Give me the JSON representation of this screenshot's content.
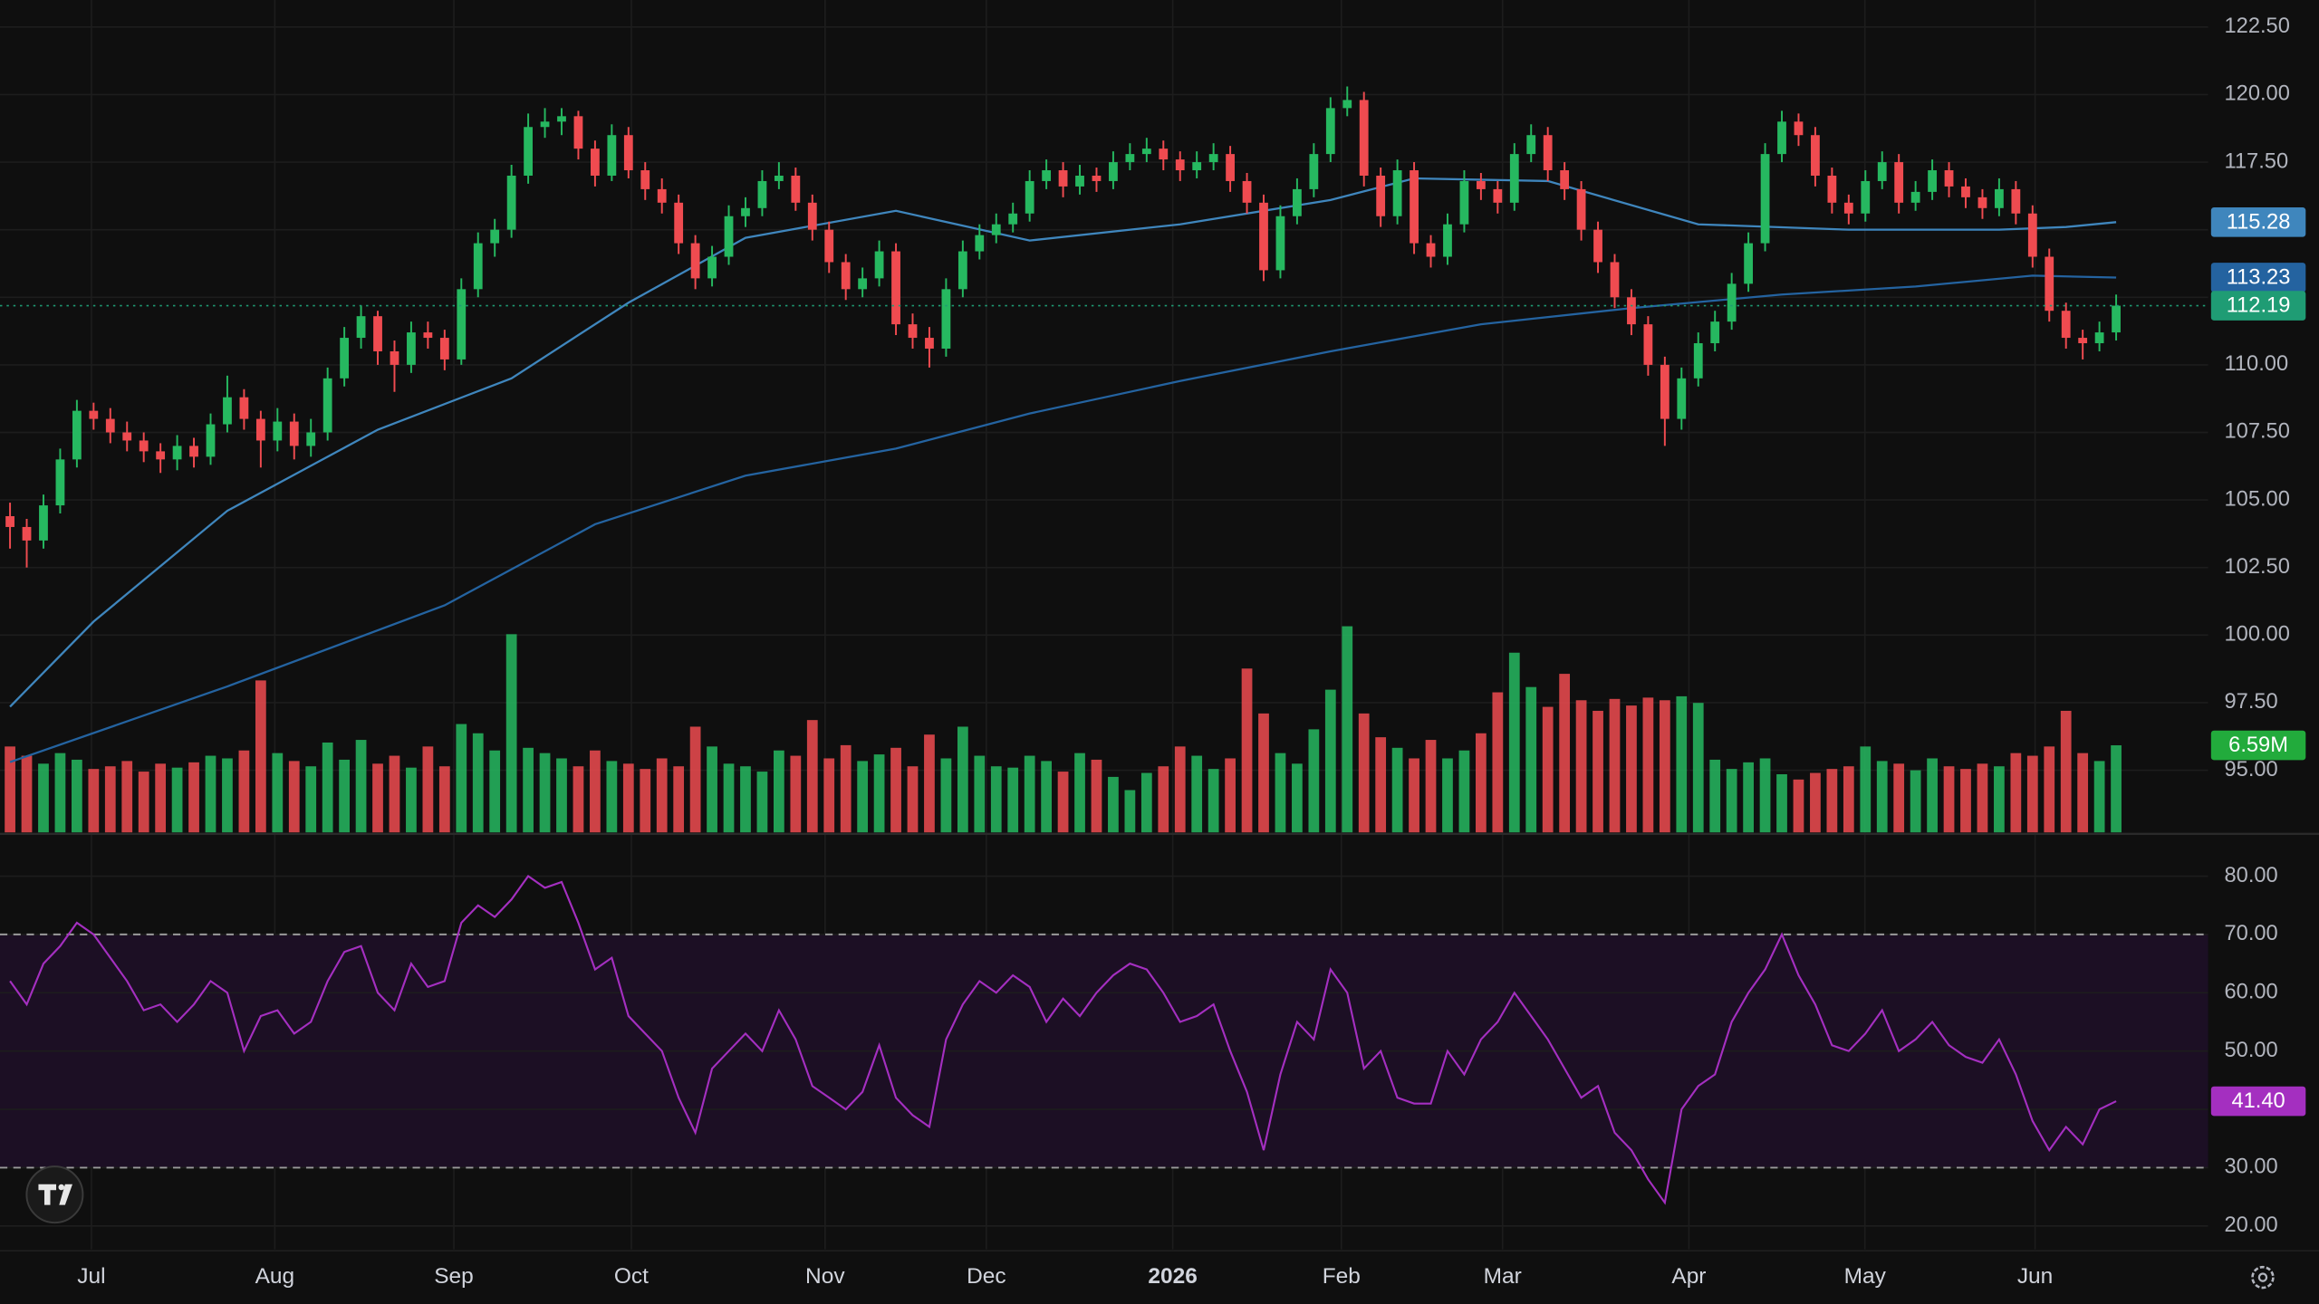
{
  "chart_data": {
    "type": "candlestick",
    "xlim": [
      -0.6,
      131.5
    ],
    "xticks": [
      {
        "value": 4.87,
        "label": "Jul"
      },
      {
        "value": 15.84,
        "label": "Aug"
      },
      {
        "value": 26.55,
        "label": "Sep"
      },
      {
        "value": 37.17,
        "label": "Oct"
      },
      {
        "value": 48.76,
        "label": "Nov"
      },
      {
        "value": 58.41,
        "label": "Dec"
      },
      {
        "value": 69.56,
        "label": "2026"
      },
      {
        "value": 79.65,
        "label": "Feb"
      },
      {
        "value": 89.29,
        "label": "Mar"
      },
      {
        "value": 100.44,
        "label": "Apr"
      },
      {
        "value": 110.97,
        "label": "May"
      },
      {
        "value": 121.15,
        "label": "Jun"
      }
    ],
    "ylim": [
      92.7,
      123.5
    ],
    "yticks": [
      {
        "value": 95,
        "label": "95.00"
      },
      {
        "value": 97.5,
        "label": "97.50"
      },
      {
        "value": 100,
        "label": "100.00"
      },
      {
        "value": 102.5,
        "label": "102.50"
      },
      {
        "value": 105,
        "label": "105.00"
      },
      {
        "value": 107.5,
        "label": "107.50"
      },
      {
        "value": 110,
        "label": "110.00"
      },
      {
        "value": 112.5,
        "label": "112.50"
      },
      {
        "value": 115,
        "label": "115.00"
      },
      {
        "value": 117.5,
        "label": "117.50"
      },
      {
        "value": 120,
        "label": "120.00"
      },
      {
        "value": 122.5,
        "label": "122.50"
      }
    ],
    "grid": true,
    "up_color": "#26b860",
    "down_color": "#ef4b50",
    "price_line_color": "#1f9c74",
    "candles": [
      [
        104.4,
        104.9,
        103.2,
        104.0
      ],
      [
        104.0,
        104.3,
        102.5,
        103.5
      ],
      [
        103.5,
        105.2,
        103.2,
        104.8
      ],
      [
        104.8,
        106.9,
        104.5,
        106.5
      ],
      [
        106.5,
        108.7,
        106.2,
        108.3
      ],
      [
        108.3,
        108.6,
        107.6,
        108.0
      ],
      [
        108.0,
        108.4,
        107.1,
        107.5
      ],
      [
        107.5,
        107.9,
        106.8,
        107.2
      ],
      [
        107.2,
        107.5,
        106.4,
        106.8
      ],
      [
        106.8,
        107.1,
        106.0,
        106.5
      ],
      [
        106.5,
        107.4,
        106.1,
        107.0
      ],
      [
        107.0,
        107.3,
        106.2,
        106.6
      ],
      [
        106.6,
        108.2,
        106.3,
        107.8
      ],
      [
        107.8,
        109.6,
        107.5,
        108.8
      ],
      [
        108.8,
        109.1,
        107.6,
        108.0
      ],
      [
        108.0,
        108.3,
        106.2,
        107.2
      ],
      [
        107.2,
        108.4,
        106.8,
        107.9
      ],
      [
        107.9,
        108.2,
        106.5,
        107.0
      ],
      [
        107.0,
        108.0,
        106.6,
        107.5
      ],
      [
        107.5,
        109.9,
        107.2,
        109.5
      ],
      [
        109.5,
        111.4,
        109.2,
        111.0
      ],
      [
        111.0,
        112.2,
        110.6,
        111.8
      ],
      [
        111.8,
        112.0,
        110.0,
        110.5
      ],
      [
        110.5,
        110.9,
        109.0,
        110.0
      ],
      [
        110.0,
        111.6,
        109.7,
        111.2
      ],
      [
        111.2,
        111.6,
        110.6,
        111.0
      ],
      [
        111.0,
        111.3,
        109.8,
        110.2
      ],
      [
        110.2,
        113.2,
        110.0,
        112.8
      ],
      [
        112.8,
        114.9,
        112.5,
        114.5
      ],
      [
        114.5,
        115.4,
        114.0,
        115.0
      ],
      [
        115.0,
        117.4,
        114.7,
        117.0
      ],
      [
        117.0,
        119.3,
        116.7,
        118.8
      ],
      [
        118.8,
        119.5,
        118.4,
        119.0
      ],
      [
        119.0,
        119.5,
        118.5,
        119.2
      ],
      [
        119.2,
        119.4,
        117.6,
        118.0
      ],
      [
        118.0,
        118.3,
        116.6,
        117.0
      ],
      [
        117.0,
        118.9,
        116.8,
        118.5
      ],
      [
        118.5,
        118.8,
        116.9,
        117.2
      ],
      [
        117.2,
        117.5,
        116.1,
        116.5
      ],
      [
        116.5,
        116.9,
        115.6,
        116.0
      ],
      [
        116.0,
        116.3,
        114.1,
        114.5
      ],
      [
        114.5,
        114.8,
        112.8,
        113.2
      ],
      [
        113.2,
        114.4,
        112.9,
        114.0
      ],
      [
        114.0,
        115.9,
        113.7,
        115.5
      ],
      [
        115.5,
        116.2,
        115.1,
        115.8
      ],
      [
        115.8,
        117.2,
        115.5,
        116.8
      ],
      [
        116.8,
        117.5,
        116.5,
        117.0
      ],
      [
        117.0,
        117.3,
        115.7,
        116.0
      ],
      [
        116.0,
        116.3,
        114.6,
        115.0
      ],
      [
        115.0,
        115.3,
        113.4,
        113.8
      ],
      [
        113.8,
        114.1,
        112.4,
        112.8
      ],
      [
        112.8,
        113.6,
        112.5,
        113.2
      ],
      [
        113.2,
        114.6,
        112.9,
        114.2
      ],
      [
        114.2,
        114.5,
        111.1,
        111.5
      ],
      [
        111.5,
        111.9,
        110.6,
        111.0
      ],
      [
        111.0,
        111.4,
        109.9,
        110.6
      ],
      [
        110.6,
        113.2,
        110.3,
        112.8
      ],
      [
        112.8,
        114.6,
        112.5,
        114.2
      ],
      [
        114.2,
        115.2,
        113.9,
        114.8
      ],
      [
        114.8,
        115.6,
        114.5,
        115.2
      ],
      [
        115.2,
        116.0,
        114.9,
        115.6
      ],
      [
        115.6,
        117.2,
        115.3,
        116.8
      ],
      [
        116.8,
        117.6,
        116.5,
        117.2
      ],
      [
        117.2,
        117.5,
        116.2,
        116.6
      ],
      [
        116.6,
        117.4,
        116.3,
        117.0
      ],
      [
        117.0,
        117.3,
        116.4,
        116.8
      ],
      [
        116.8,
        117.9,
        116.5,
        117.5
      ],
      [
        117.5,
        118.2,
        117.2,
        117.8
      ],
      [
        117.8,
        118.4,
        117.5,
        118.0
      ],
      [
        118.0,
        118.3,
        117.2,
        117.6
      ],
      [
        117.6,
        117.9,
        116.8,
        117.2
      ],
      [
        117.2,
        117.9,
        116.9,
        117.5
      ],
      [
        117.5,
        118.2,
        117.2,
        117.8
      ],
      [
        117.8,
        118.1,
        116.4,
        116.8
      ],
      [
        116.8,
        117.1,
        115.6,
        116.0
      ],
      [
        116.0,
        116.3,
        113.1,
        113.5
      ],
      [
        113.5,
        115.9,
        113.2,
        115.5
      ],
      [
        115.5,
        116.9,
        115.2,
        116.5
      ],
      [
        116.5,
        118.2,
        116.2,
        117.8
      ],
      [
        117.8,
        119.9,
        117.5,
        119.5
      ],
      [
        119.5,
        120.3,
        119.2,
        119.8
      ],
      [
        119.8,
        120.1,
        116.6,
        117.0
      ],
      [
        117.0,
        117.3,
        115.1,
        115.5
      ],
      [
        115.5,
        117.6,
        115.2,
        117.2
      ],
      [
        117.2,
        117.5,
        114.1,
        114.5
      ],
      [
        114.5,
        114.8,
        113.6,
        114.0
      ],
      [
        114.0,
        115.6,
        113.7,
        115.2
      ],
      [
        115.2,
        117.2,
        114.9,
        116.8
      ],
      [
        116.8,
        117.1,
        116.1,
        116.5
      ],
      [
        116.5,
        116.8,
        115.6,
        116.0
      ],
      [
        116.0,
        118.2,
        115.7,
        117.8
      ],
      [
        117.8,
        118.9,
        117.5,
        118.5
      ],
      [
        118.5,
        118.8,
        116.8,
        117.2
      ],
      [
        117.2,
        117.5,
        116.1,
        116.5
      ],
      [
        116.5,
        116.8,
        114.6,
        115.0
      ],
      [
        115.0,
        115.3,
        113.4,
        113.8
      ],
      [
        113.8,
        114.1,
        112.1,
        112.5
      ],
      [
        112.5,
        112.8,
        111.1,
        111.5
      ],
      [
        111.5,
        111.8,
        109.6,
        110.0
      ],
      [
        110.0,
        110.3,
        107.0,
        108.0
      ],
      [
        108.0,
        109.9,
        107.6,
        109.5
      ],
      [
        109.5,
        111.2,
        109.2,
        110.8
      ],
      [
        110.8,
        112.0,
        110.5,
        111.6
      ],
      [
        111.6,
        113.4,
        111.3,
        113.0
      ],
      [
        113.0,
        114.9,
        112.7,
        114.5
      ],
      [
        114.5,
        118.2,
        114.2,
        117.8
      ],
      [
        117.8,
        119.4,
        117.5,
        119.0
      ],
      [
        119.0,
        119.3,
        118.1,
        118.5
      ],
      [
        118.5,
        118.8,
        116.6,
        117.0
      ],
      [
        117.0,
        117.3,
        115.6,
        116.0
      ],
      [
        116.0,
        116.3,
        115.2,
        115.6
      ],
      [
        115.6,
        117.2,
        115.3,
        116.8
      ],
      [
        116.8,
        117.9,
        116.5,
        117.5
      ],
      [
        117.5,
        117.8,
        115.6,
        116.0
      ],
      [
        116.0,
        116.8,
        115.7,
        116.4
      ],
      [
        116.4,
        117.6,
        116.1,
        117.2
      ],
      [
        117.2,
        117.5,
        116.2,
        116.6
      ],
      [
        116.6,
        116.9,
        115.8,
        116.2
      ],
      [
        116.2,
        116.5,
        115.4,
        115.8
      ],
      [
        115.8,
        116.9,
        115.5,
        116.5
      ],
      [
        116.5,
        116.8,
        115.2,
        115.6
      ],
      [
        115.6,
        115.9,
        113.6,
        114.0
      ],
      [
        114.0,
        114.3,
        111.6,
        112.0
      ],
      [
        112.0,
        112.3,
        110.6,
        111.0
      ],
      [
        111.0,
        111.3,
        110.2,
        110.8
      ],
      [
        110.8,
        111.6,
        110.5,
        111.2
      ],
      [
        111.2,
        112.6,
        110.9,
        112.19
      ]
    ],
    "overlays": [
      {
        "color": "#3f86bd",
        "x": [
          0,
          5,
          13,
          22,
          30,
          37,
          44,
          53,
          61,
          70,
          79,
          84,
          92,
          101,
          110,
          119,
          123,
          126
        ],
        "values": [
          97.35,
          100.5,
          104.6,
          107.6,
          109.5,
          112.3,
          114.7,
          115.7,
          114.6,
          115.2,
          116.1,
          116.9,
          116.8,
          115.2,
          115.0,
          115.0,
          115.1,
          115.28
        ]
      },
      {
        "color": "#2463a0",
        "x": [
          0,
          13,
          26,
          35,
          44,
          53,
          61,
          70,
          79,
          88,
          97,
          106,
          114,
          121,
          126
        ],
        "values": [
          95.3,
          98.1,
          101.1,
          104.1,
          105.9,
          106.9,
          108.2,
          109.4,
          110.5,
          111.5,
          112.1,
          112.6,
          112.9,
          113.3,
          113.23
        ]
      }
    ],
    "volume": {
      "ylim": [
        0,
        63
      ],
      "last_label": "6.59M",
      "color": "#22ab3c",
      "values": [
        6.5,
        5.8,
        5.2,
        6.0,
        5.5,
        4.8,
        5.0,
        5.4,
        4.6,
        5.2,
        4.9,
        5.3,
        5.8,
        5.6,
        6.2,
        11.5,
        6.0,
        5.4,
        5.0,
        6.8,
        5.5,
        7.0,
        5.2,
        5.8,
        4.9,
        6.5,
        5.0,
        8.2,
        7.5,
        6.2,
        15.0,
        6.4,
        6.0,
        5.6,
        5.0,
        6.2,
        5.4,
        5.2,
        4.8,
        5.6,
        5.0,
        8.0,
        6.5,
        5.2,
        5.0,
        4.6,
        6.2,
        5.8,
        8.5,
        5.6,
        6.6,
        5.4,
        5.9,
        6.4,
        5.0,
        7.4,
        5.6,
        8.0,
        5.8,
        5.0,
        4.9,
        5.8,
        5.4,
        4.6,
        6.0,
        5.5,
        4.2,
        3.2,
        4.5,
        5.0,
        6.5,
        5.8,
        4.8,
        5.6,
        12.4,
        9.0,
        6.0,
        5.2,
        7.8,
        10.8,
        15.6,
        9.0,
        7.2,
        6.4,
        5.6,
        7.0,
        5.6,
        6.2,
        7.5,
        10.6,
        13.6,
        11.0,
        9.5,
        12.0,
        10.0,
        9.2,
        10.1,
        9.6,
        10.2,
        10.0,
        10.3,
        9.8,
        5.5,
        4.8,
        5.3,
        5.6,
        4.4,
        4.0,
        4.5,
        4.8,
        5.0,
        6.5,
        5.4,
        5.2,
        4.7,
        5.6,
        5.0,
        4.8,
        5.2,
        5.0,
        6.0,
        5.8,
        6.5,
        9.2,
        6.0,
        5.4,
        6.59
      ]
    },
    "rsi": {
      "color": "#a42fc0",
      "band": [
        30,
        70
      ],
      "band_color": "#1c0f24",
      "ylim": [
        16,
        87
      ],
      "last_label": "41.40",
      "yticks": [
        {
          "value": 20,
          "label": "20.00"
        },
        {
          "value": 30,
          "label": "30.00"
        },
        {
          "value": 40,
          "label": "40.00"
        },
        {
          "value": 50,
          "label": "50.00"
        },
        {
          "value": 60,
          "label": "60.00"
        },
        {
          "value": 70,
          "label": "70.00"
        },
        {
          "value": 80,
          "label": "80.00"
        }
      ],
      "values": [
        62,
        58,
        65,
        68,
        72,
        70,
        66,
        62,
        57,
        58,
        55,
        58,
        62,
        60,
        50,
        56,
        57,
        53,
        55,
        62,
        67,
        68,
        60,
        57,
        65,
        61,
        62,
        72,
        75,
        73,
        76,
        80,
        78,
        79,
        72,
        64,
        66,
        56,
        53,
        50,
        42,
        36,
        47,
        50,
        53,
        50,
        57,
        52,
        44,
        42,
        40,
        43,
        51,
        42,
        39,
        37,
        52,
        58,
        62,
        60,
        63,
        61,
        55,
        59,
        56,
        60,
        63,
        65,
        64,
        60,
        55,
        56,
        58,
        50,
        43,
        33,
        46,
        55,
        52,
        64,
        60,
        47,
        50,
        42,
        41,
        41,
        50,
        46,
        52,
        55,
        60,
        56,
        52,
        47,
        42,
        44,
        36,
        33,
        28,
        24,
        40,
        44,
        46,
        55,
        60,
        64,
        70,
        63,
        58,
        51,
        50,
        53,
        57,
        50,
        52,
        55,
        51,
        49,
        48,
        52,
        46,
        38,
        33,
        37,
        34,
        40,
        41.4
      ]
    }
  }
}
